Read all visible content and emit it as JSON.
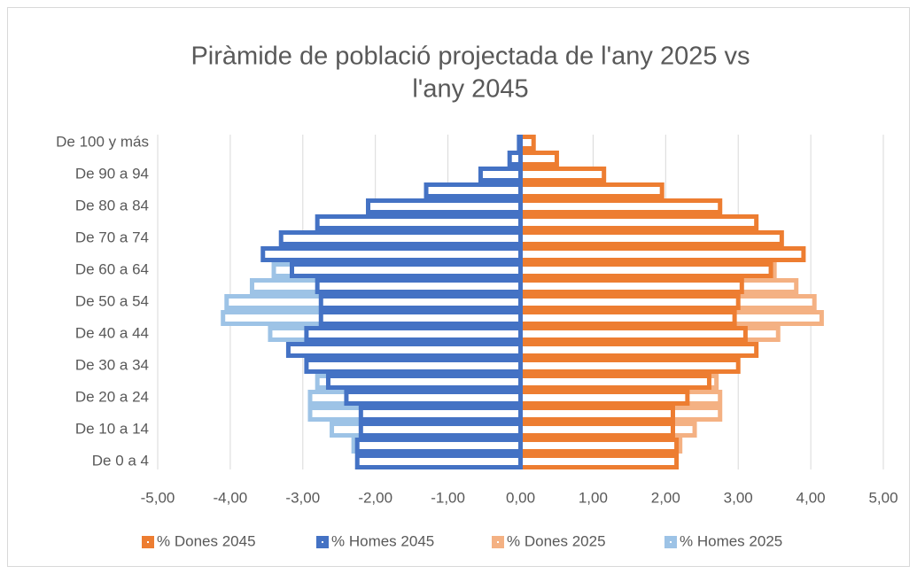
{
  "chart_data": {
    "type": "bar",
    "orientation": "horizontal",
    "title": "Piràmide de població projectada de l'any 2025 vs l'any 2045",
    "categories": [
      "De 0 a 4",
      null,
      "De 10 a 14",
      null,
      "De 20 a 24",
      null,
      "De 30 a 34",
      null,
      "De 40 a 44",
      null,
      "De 50 a 54",
      null,
      "De 60 a 64",
      null,
      "De 70 a 74",
      null,
      "De 80 a 84",
      null,
      "De 90 a 94",
      null,
      "De 100 y más"
    ],
    "series": [
      {
        "name": "% Dones 2045",
        "color": "#ed7d31",
        "values": [
          2.15,
          2.15,
          2.1,
          2.1,
          2.3,
          2.6,
          3.0,
          3.25,
          3.1,
          2.95,
          3.0,
          3.05,
          3.45,
          3.9,
          3.6,
          3.25,
          2.75,
          1.95,
          1.15,
          0.5,
          0.18
        ]
      },
      {
        "name": "% Homes 2045",
        "color": "#4472c4",
        "values": [
          -2.25,
          -2.25,
          -2.2,
          -2.2,
          -2.4,
          -2.65,
          -2.95,
          -3.2,
          -2.95,
          -2.75,
          -2.75,
          -2.8,
          -3.15,
          -3.55,
          -3.3,
          -2.8,
          -2.1,
          -1.3,
          -0.55,
          -0.15,
          -0.02
        ]
      },
      {
        "name": "% Dones 2025",
        "color": "#f4b183",
        "values": [
          1.95,
          2.2,
          2.4,
          2.75,
          2.75,
          2.7,
          2.8,
          3.0,
          3.55,
          4.15,
          4.05,
          3.8,
          3.5,
          3.05,
          2.6,
          2.3,
          1.8,
          1.2,
          0.7,
          0.3,
          0.05
        ]
      },
      {
        "name": "% Homes 2025",
        "color": "#9dc3e6",
        "values": [
          -2.05,
          -2.3,
          -2.6,
          -2.9,
          -2.9,
          -2.8,
          -2.75,
          -2.9,
          -3.45,
          -4.1,
          -4.05,
          -3.7,
          -3.4,
          -2.9,
          -2.25,
          -1.9,
          -1.3,
          -0.7,
          -0.3,
          -0.05,
          0
        ]
      }
    ],
    "xlim": [
      -5,
      5
    ],
    "xticks": [
      {
        "value": -5,
        "label": "-5,00"
      },
      {
        "value": -4,
        "label": "-4,00"
      },
      {
        "value": -3,
        "label": "-3,00"
      },
      {
        "value": -2,
        "label": "-2,00"
      },
      {
        "value": -1,
        "label": "-1,00"
      },
      {
        "value": 0,
        "label": "0,00"
      },
      {
        "value": 1,
        "label": "1,00"
      },
      {
        "value": 2,
        "label": "2,00"
      },
      {
        "value": 3,
        "label": "3,00"
      },
      {
        "value": 4,
        "label": "4,00"
      },
      {
        "value": 5,
        "label": "5,00"
      }
    ],
    "grid": true,
    "legend": "bottom"
  }
}
